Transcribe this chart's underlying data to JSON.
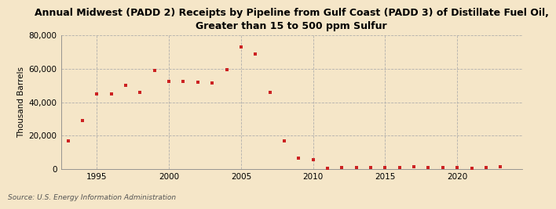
{
  "title": "Annual Midwest (PADD 2) Receipts by Pipeline from Gulf Coast (PADD 3) of Distillate Fuel Oil,\nGreater than 15 to 500 ppm Sulfur",
  "ylabel": "Thousand Barrels",
  "source": "Source: U.S. Energy Information Administration",
  "background_color": "#f5e6c8",
  "plot_bg_color": "#f5e6c8",
  "marker_color": "#cc2222",
  "years": [
    1993,
    1994,
    1995,
    1996,
    1997,
    1998,
    1999,
    2000,
    2001,
    2002,
    2003,
    2004,
    2005,
    2006,
    2007,
    2008,
    2009,
    2010,
    2011,
    2012,
    2013,
    2014,
    2015,
    2016,
    2017,
    2018,
    2019,
    2020,
    2021,
    2022,
    2023
  ],
  "values": [
    17000,
    29000,
    45000,
    45000,
    50000,
    46000,
    59000,
    52500,
    52500,
    52000,
    51500,
    59500,
    73000,
    69000,
    46000,
    17000,
    6500,
    5500,
    500,
    800,
    700,
    900,
    800,
    1000,
    1200,
    800,
    700,
    600,
    500,
    1000,
    1200
  ],
  "ylim": [
    0,
    80000
  ],
  "yticks": [
    0,
    20000,
    40000,
    60000,
    80000
  ],
  "xlim": [
    1992.5,
    2024.5
  ],
  "xticks": [
    1995,
    2000,
    2005,
    2010,
    2015,
    2020
  ]
}
